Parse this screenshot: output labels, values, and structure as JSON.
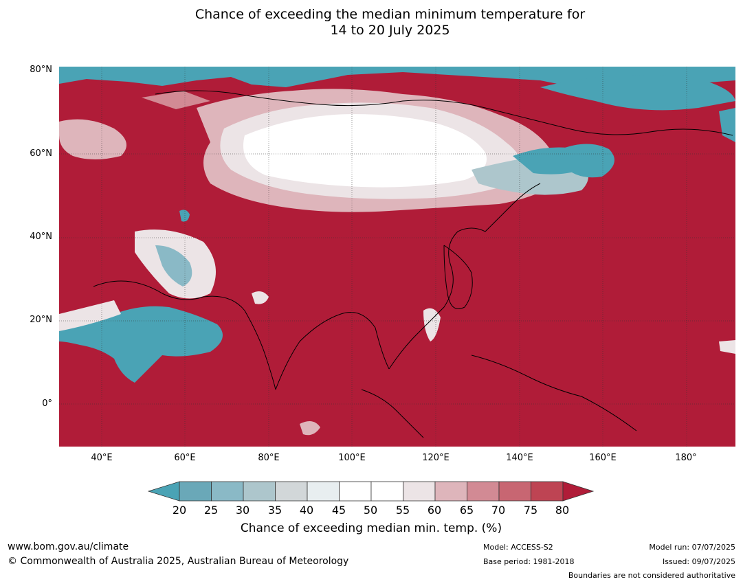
{
  "title": {
    "line1": "Chance of exceeding the median minimum temperature for",
    "line2": "14 to 20 July 2025"
  },
  "map": {
    "lat_labels": [
      "80°N",
      "60°N",
      "40°N",
      "20°N",
      "0°"
    ],
    "lon_labels": [
      "40°E",
      "60°E",
      "80°E",
      "100°E",
      "120°E",
      "140°E",
      "160°E",
      "180°"
    ]
  },
  "legend": {
    "ticks": [
      "20",
      "25",
      "30",
      "35",
      "40",
      "45",
      "50",
      "55",
      "60",
      "65",
      "70",
      "75",
      "80"
    ],
    "colors": [
      "#4aa3b5",
      "#6aa8b8",
      "#8ab9c6",
      "#adc6cc",
      "#d2d7d9",
      "#e8eef0",
      "#ffffff",
      "#ffffff",
      "#ece4e6",
      "#deb5bb",
      "#d28a94",
      "#c86672",
      "#be4453",
      "#b01c38"
    ],
    "label": "Chance of exceeding median min. temp. (%)"
  },
  "footer": {
    "website": "www.bom.gov.au/climate",
    "copyright": "© Commonwealth of Australia 2025, Australian Bureau of Meteorology",
    "model": "Model: ACCESS-S2",
    "base_period": "Base period: 1981-2018",
    "model_run": "Model run: 07/07/2025",
    "issued": "Issued: 09/07/2025",
    "disclaimer": "Boundaries are not considered authoritative"
  }
}
